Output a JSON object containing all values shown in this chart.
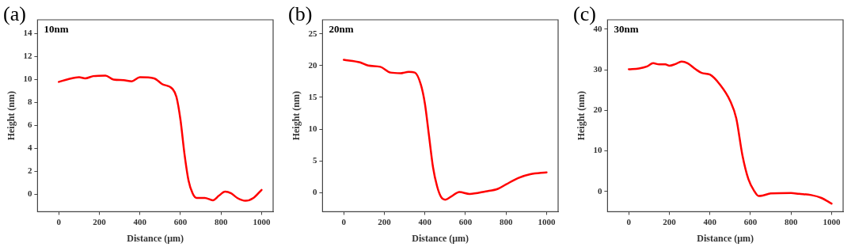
{
  "chart_data": [
    {
      "type": "line",
      "title": "(a)",
      "xlabel": "Distance (μm)",
      "ylabel": "Height (nm)",
      "annotations": [
        "10nm"
      ],
      "xlim": [
        -105,
        1057
      ],
      "xticks": [
        0,
        200,
        400,
        600,
        800,
        1000
      ],
      "ylim": [
        -1.5,
        15.2
      ],
      "yticks": [
        0,
        2,
        4,
        6,
        8,
        10,
        12,
        14
      ],
      "grid": false,
      "legend": false,
      "marker": "none",
      "series": [
        {
          "color": "#ff0000",
          "x": [
            0,
            50,
            100,
            130,
            170,
            230,
            270,
            320,
            360,
            400,
            470,
            510,
            560,
            580,
            600,
            620,
            640,
            660,
            680,
            720,
            760,
            790,
            820,
            850,
            880,
            920,
            960,
            1000
          ],
          "values": [
            9.8,
            10.05,
            10.2,
            10.1,
            10.3,
            10.35,
            10.0,
            9.95,
            9.85,
            10.2,
            10.1,
            9.6,
            9.2,
            8.5,
            6.5,
            3.5,
            1.2,
            0.1,
            -0.3,
            -0.3,
            -0.5,
            -0.1,
            0.25,
            0.1,
            -0.3,
            -0.55,
            -0.3,
            0.4
          ]
        }
      ]
    },
    {
      "type": "line",
      "title": "(b)",
      "xlabel": "Distance (μm)",
      "ylabel": "Height (nm)",
      "annotations": [
        "20nm"
      ],
      "xlim": [
        -105,
        1057
      ],
      "xticks": [
        0,
        200,
        400,
        600,
        800,
        1000
      ],
      "ylim": [
        -3,
        27.2
      ],
      "yticks": [
        0,
        5,
        10,
        15,
        20,
        25
      ],
      "grid": false,
      "legend": false,
      "marker": "none",
      "series": [
        {
          "color": "#ff0000",
          "x": [
            0,
            80,
            120,
            180,
            230,
            280,
            320,
            350,
            380,
            400,
            420,
            440,
            460,
            480,
            500,
            530,
            570,
            620,
            700,
            760,
            800,
            860,
            920,
            1000
          ],
          "values": [
            20.9,
            20.5,
            20.0,
            19.8,
            18.9,
            18.8,
            19.0,
            18.9,
            17.0,
            14.0,
            9.0,
            4.0,
            1.0,
            -0.7,
            -1.1,
            -0.6,
            0.1,
            -0.2,
            0.2,
            0.6,
            1.3,
            2.3,
            2.9,
            3.2
          ]
        }
      ]
    },
    {
      "type": "line",
      "title": "(c)",
      "xlabel": "Distance (μm)",
      "ylabel": "Height (nm)",
      "annotations": [
        "30nm"
      ],
      "xlim": [
        -105,
        1057
      ],
      "xticks": [
        0,
        200,
        400,
        600,
        800,
        1000
      ],
      "ylim": [
        -5,
        42.3
      ],
      "yticks": [
        0,
        10,
        20,
        30,
        40
      ],
      "grid": false,
      "legend": false,
      "marker": "none",
      "series": [
        {
          "color": "#ff0000",
          "x": [
            0,
            50,
            90,
            120,
            150,
            180,
            200,
            230,
            260,
            290,
            330,
            360,
            400,
            450,
            500,
            530,
            560,
            590,
            620,
            640,
            660,
            700,
            800,
            840,
            900,
            950,
            1000
          ],
          "values": [
            30.1,
            30.3,
            30.8,
            31.6,
            31.3,
            31.3,
            31.0,
            31.4,
            32.0,
            31.6,
            30.1,
            29.2,
            28.8,
            26.3,
            22.3,
            18.0,
            9.0,
            3.0,
            0.0,
            -1.1,
            -1.0,
            -0.5,
            -0.4,
            -0.6,
            -0.9,
            -1.6,
            -3.0
          ]
        }
      ]
    }
  ]
}
